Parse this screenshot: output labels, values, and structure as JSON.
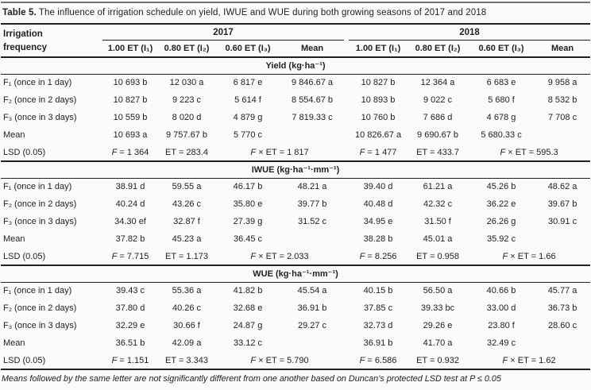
{
  "title": {
    "prefix": "Table 5.",
    "text": " The influence of irrigation schedule on yield, IWUE and WUE during both growing seasons of 2017 and 2018"
  },
  "header": {
    "row_label": "Irrigation frequency",
    "year_2017": "2017",
    "year_2018": "2018",
    "subcols_2017": [
      "1.00 ET (I₁)",
      "0.80 ET (I₂)",
      "0.60 ET (I₃)",
      "Mean"
    ],
    "subcols_2018": [
      "1.00 ET (I₁)",
      "0.80 ET (I₂)",
      "0.60 ET (I₃)",
      "Mean"
    ]
  },
  "sections": [
    {
      "heading": "Yield (kg·ha⁻¹)",
      "rows": [
        {
          "label": "F₁ (once in 1 day)",
          "values": [
            "10 693 b",
            "12 030 a",
            "6 817 e",
            "9 846.67 a",
            "10 827 b",
            "12 364 a",
            "6 683 e",
            "9 958 a"
          ]
        },
        {
          "label": "F₂ (once in 2 days)",
          "values": [
            "10 827 b",
            "9 223 c",
            "5 614 f",
            "8 554.67 b",
            "10 893 b",
            "9 022 c",
            "5 680 f",
            "8 532 b"
          ]
        },
        {
          "label": "F₃ (once in 3 days)",
          "values": [
            "10 559 b",
            "8 020 d",
            "4 879 g",
            "7 819.33 c",
            "10 760 b",
            "7 686 d",
            "4 678 g",
            "7 708 c"
          ]
        },
        {
          "label": "Mean",
          "values": [
            "10 693 a",
            "9 757.67 b",
            "5 770 c",
            "",
            "10 826.67 a",
            "9 690.67 b",
            "5 680.33 c",
            ""
          ]
        }
      ],
      "lsd": {
        "label": "LSD (0.05)",
        "values": [
          "F = 1 364",
          "ET = 283.4",
          "F × ET = 1 817",
          "F = 1 477",
          "ET = 433.7",
          "F × ET = 595.3"
        ]
      }
    },
    {
      "heading": "IWUE (kg·ha⁻¹·mm⁻¹)",
      "rows": [
        {
          "label": "F₁ (once in 1 day)",
          "values": [
            "38.91 d",
            "59.55 a",
            "46.17 b",
            "48.21 a",
            "39.40 d",
            "61.21 a",
            "45.26 b",
            "48.62 a"
          ]
        },
        {
          "label": "F₂ (once in 2 days)",
          "values": [
            "40.24 d",
            "43.26 c",
            "35.80 e",
            "39.77 b",
            "40.48 d",
            "42.32 c",
            "36.22 e",
            "39.67 b"
          ]
        },
        {
          "label": "F₃ (once in 3 days)",
          "values": [
            "34.30 ef",
            "32.87 f",
            "27.39 g",
            "31.52 c",
            "34.95 e",
            "31.50 f",
            "26.26 g",
            "30.91 c"
          ]
        },
        {
          "label": "Mean",
          "values": [
            "37.82 b",
            "45.23 a",
            "36.45 c",
            "",
            "38.28 b",
            "45.01 a",
            "35.92 c",
            ""
          ]
        }
      ],
      "lsd": {
        "label": "LSD (0.05)",
        "values": [
          "F = 7.715",
          "ET = 1.173",
          "F × ET = 2.033",
          "F = 8.256",
          "ET = 0.958",
          "F × ET = 1.66"
        ]
      }
    },
    {
      "heading": "WUE (kg·ha⁻¹·mm⁻¹)",
      "rows": [
        {
          "label": "F₁ (once in 1 day)",
          "values": [
            "39.43 c",
            "55.36 a",
            "41.82 b",
            "45.54 a",
            "40.15 b",
            "56.50 a",
            "40.66 b",
            "45.77 a"
          ]
        },
        {
          "label": "F₂ (once in 2 days)",
          "values": [
            "37.80 d",
            "40.26 c",
            "32.68 e",
            "36.91 b",
            "37.85 c",
            "39.33 bc",
            "33.00 d",
            "36.73 b"
          ]
        },
        {
          "label": "F₃ (once in 3 days)",
          "values": [
            "32.29 e",
            "30.66 f",
            "24.87 g",
            "29.27 c",
            "32.73 d",
            "29.26 e",
            "23.80 f",
            "28.60 c"
          ]
        },
        {
          "label": "Mean",
          "values": [
            "36.51 b",
            "42.09 a",
            "33.12 c",
            "",
            "36.91 b",
            "41.70 a",
            "32.49 c",
            ""
          ]
        }
      ],
      "lsd": {
        "label": "LSD (0.05)",
        "values": [
          "F = 1.151",
          "ET = 3.343",
          "F × ET = 5.790",
          "F = 6.586",
          "ET = 0.932",
          "F × ET = 1.62"
        ]
      }
    }
  ],
  "footnote": "Means followed by the same letter are not significantly different from one another based on Duncan’s protected LSD test at P ≤ 0.05"
}
